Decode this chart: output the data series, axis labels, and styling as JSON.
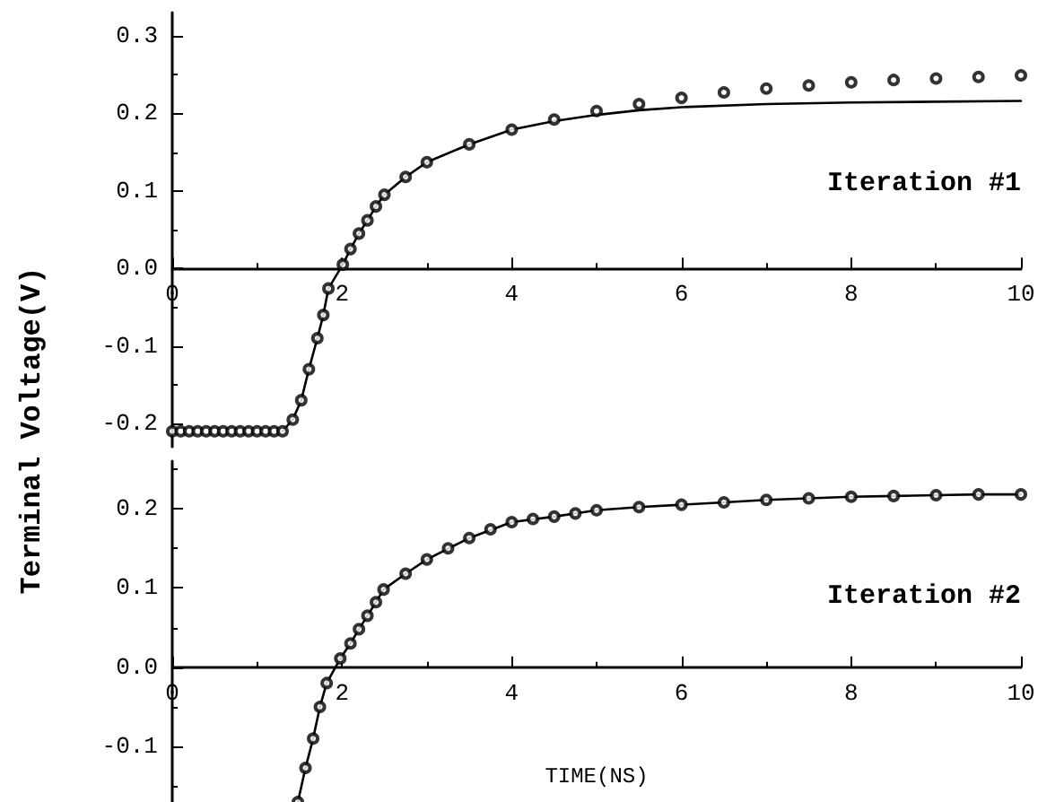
{
  "chart_data": [
    {
      "type": "line",
      "ylabel": "Terminal Voltage(V)",
      "annotations": [
        "Iteration #1"
      ],
      "xlim": [
        0,
        10
      ],
      "xticks": [
        0,
        2,
        4,
        6,
        8,
        10
      ],
      "ylim": [
        -0.23,
        0.33
      ],
      "yticks": [
        -0.2,
        -0.1,
        {
          "value": 0,
          "label": "0.0"
        },
        0.1,
        0.2,
        0.3
      ],
      "line_style": "solid",
      "series": [
        {
          "marker": "none",
          "color": "#000000",
          "x": [
            1.3,
            1.42,
            1.52,
            1.61,
            1.71,
            1.78,
            1.84,
            2.01,
            2.1,
            2.2,
            2.3,
            2.4,
            2.5,
            2.75,
            3.0,
            3.5,
            4.0,
            4.5,
            5.0,
            5.5,
            6.0,
            7.0,
            8.0,
            9.0,
            10
          ],
          "values": [
            -0.21,
            -0.195,
            -0.17,
            -0.13,
            -0.09,
            -0.06,
            -0.026,
            0.005,
            0.025,
            0.045,
            0.062,
            0.08,
            0.095,
            0.118,
            0.137,
            0.16,
            0.179,
            0.19,
            0.198,
            0.204,
            0.208,
            0.212,
            0.214,
            0.215,
            0.216
          ]
        },
        {
          "type": "scatter",
          "marker": "circle",
          "color": "#000000",
          "x": [
            0,
            0.1,
            0.2,
            0.3,
            0.4,
            0.5,
            0.6,
            0.7,
            0.8,
            0.9,
            1.0,
            1.1,
            1.2,
            1.3,
            1.42,
            1.52,
            1.61,
            1.71,
            1.78,
            1.84,
            2.01,
            2.1,
            2.2,
            2.3,
            2.4,
            2.5,
            2.75,
            3.0,
            3.5,
            4.0,
            4.5,
            5.0,
            5.5,
            6.0,
            6.5,
            7.0,
            7.5,
            8.0,
            8.5,
            9.0,
            9.5,
            10
          ],
          "values": [
            -0.21,
            -0.21,
            -0.21,
            -0.21,
            -0.21,
            -0.21,
            -0.21,
            -0.21,
            -0.21,
            -0.21,
            -0.21,
            -0.21,
            -0.21,
            -0.21,
            -0.195,
            -0.17,
            -0.13,
            -0.09,
            -0.06,
            -0.026,
            0.005,
            0.025,
            0.045,
            0.062,
            0.08,
            0.095,
            0.118,
            0.137,
            0.16,
            0.179,
            0.192,
            0.203,
            0.212,
            0.22,
            0.227,
            0.232,
            0.236,
            0.24,
            0.243,
            0.245,
            0.247,
            0.249
          ]
        }
      ]
    },
    {
      "type": "line",
      "xlabel": "TIME(NS)",
      "annotations": [
        "Iteration #2"
      ],
      "xlim": [
        0,
        10
      ],
      "xticks": [
        0,
        2,
        4,
        6,
        8,
        10
      ],
      "ylim": [
        -0.17,
        0.26
      ],
      "yticks": [
        -0.1,
        {
          "value": 0,
          "label": "0.0"
        },
        0.1,
        0.2
      ],
      "line_style": "solid",
      "series": [
        {
          "marker": "none",
          "color": "#000000",
          "x": [
            1.48,
            1.57,
            1.66,
            1.74,
            1.82,
            1.98,
            2.1,
            2.2,
            2.3,
            2.4,
            2.49,
            2.75,
            3.0,
            3.5,
            4.0,
            4.5,
            5.0,
            5.5,
            6.0,
            6.5,
            7.0,
            7.5,
            8.0,
            8.5,
            9.0,
            9.5,
            10
          ],
          "values": [
            -0.17,
            -0.127,
            -0.09,
            -0.05,
            -0.02,
            0.011,
            0.03,
            0.048,
            0.065,
            0.082,
            0.098,
            0.118,
            0.136,
            0.163,
            0.183,
            0.19,
            0.198,
            0.202,
            0.205,
            0.208,
            0.211,
            0.213,
            0.215,
            0.216,
            0.217,
            0.218,
            0.218
          ]
        },
        {
          "type": "scatter",
          "marker": "circle",
          "color": "#000000",
          "x": [
            1.48,
            1.57,
            1.66,
            1.74,
            1.82,
            1.98,
            2.1,
            2.2,
            2.3,
            2.4,
            2.49,
            2.75,
            3.0,
            3.25,
            3.5,
            3.75,
            4.0,
            4.25,
            4.5,
            4.75,
            5.0,
            5.5,
            6.0,
            6.5,
            7.0,
            7.5,
            8.0,
            8.5,
            9.0,
            9.5,
            10
          ],
          "values": [
            -0.17,
            -0.127,
            -0.09,
            -0.05,
            -0.02,
            0.011,
            0.03,
            0.048,
            0.065,
            0.082,
            0.098,
            0.118,
            0.136,
            0.15,
            0.163,
            0.174,
            0.183,
            0.187,
            0.19,
            0.194,
            0.198,
            0.202,
            0.205,
            0.208,
            0.211,
            0.213,
            0.215,
            0.216,
            0.217,
            0.218,
            0.218
          ]
        }
      ]
    }
  ]
}
